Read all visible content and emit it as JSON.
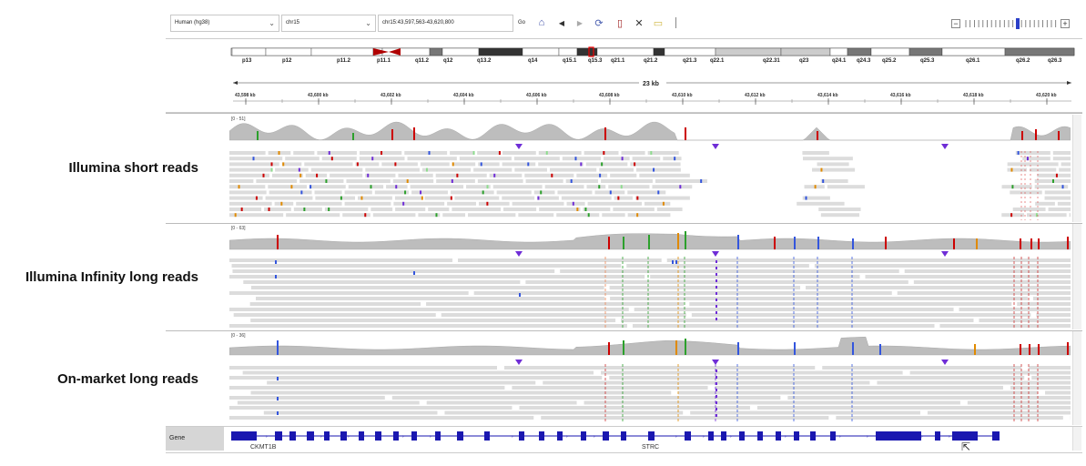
{
  "toolbar": {
    "genome": "Human (hg38)",
    "chromosome": "chr15",
    "locus": "chr15:43,597,563-43,620,800",
    "go_label": "Go"
  },
  "cytoband": {
    "bands": [
      "p13",
      "p12",
      "p11.2",
      "p11.1",
      "q11.2",
      "q12",
      "q13.2",
      "q14",
      "q15.1",
      "q15.3",
      "q21.1",
      "q21.2",
      "q21.3",
      "q22.1",
      "q22.31",
      "q23",
      "q24.1",
      "q24.3",
      "q25.2",
      "q25.3",
      "q26.1",
      "q26.2",
      "q26.3"
    ]
  },
  "ruler": {
    "span_label": "23 kb",
    "ticks": [
      "43,598 kb",
      "43,600 kb",
      "43,602 kb",
      "43,604 kb",
      "43,606 kb",
      "43,608 kb",
      "43,610 kb",
      "43,612 kb",
      "43,614 kb",
      "43,616 kb",
      "43,618 kb",
      "43,620 kb"
    ]
  },
  "tracks": [
    {
      "label": "Illumina short reads",
      "range": "[0 - 51]"
    },
    {
      "label": "Illumina Infinity long reads",
      "range": "[0 - 63]"
    },
    {
      "label": "On-market long reads",
      "range": "[0 - 36]"
    }
  ],
  "gene_track": {
    "label": "Gene",
    "genes": [
      "CKMT1B",
      "STRC"
    ]
  },
  "colors": {
    "coverage": "#bdbdbd",
    "read": "#dcdcdc",
    "gene": "#1a17b0",
    "insertion": "#6f2dd6",
    "centromere": "#b00000"
  },
  "icons": [
    "home-icon",
    "back-icon",
    "forward-icon",
    "refresh-icon",
    "roi-icon",
    "fit-icon",
    "popup-icon"
  ]
}
